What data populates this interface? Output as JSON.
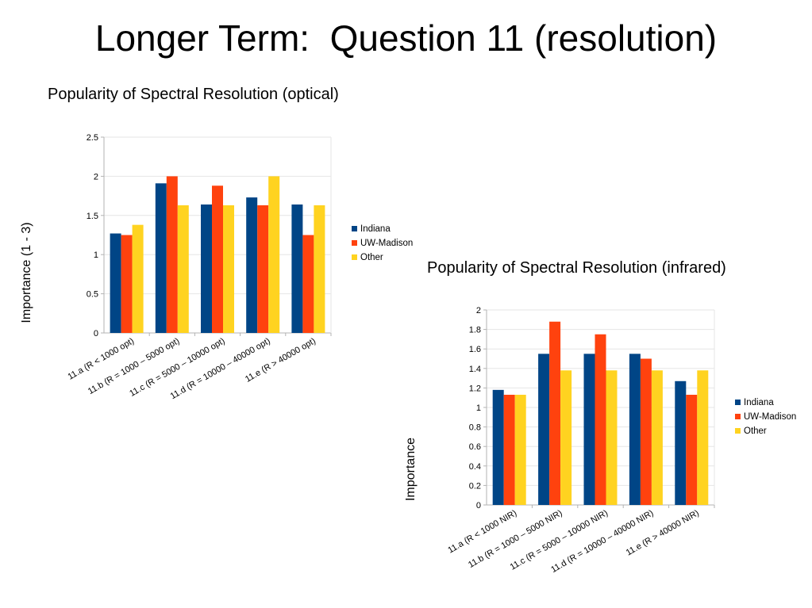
{
  "slide": {
    "title": "Longer Term:  Question 11 (resolution)"
  },
  "colors": {
    "Indiana": "#004586",
    "UW-Madison": "#ff420e",
    "Other": "#ffd320",
    "grid": "#e6e6e6",
    "axis": "#b3b3b3"
  },
  "chart_data": [
    {
      "type": "bar",
      "title": "Popularity of Spectral Resolution (optical)",
      "ylabel": "Importance (1 - 3)",
      "xlabel": "",
      "ylim": [
        0,
        2.5
      ],
      "yticks": [
        "0",
        "0.5",
        "1",
        "1.5",
        "2",
        "2.5"
      ],
      "yticks_values": [
        0,
        0.5,
        1,
        1.5,
        2,
        2.5
      ],
      "grid": true,
      "legend": "right",
      "categories": [
        "11.a (R < 1000 opt)",
        "11.b (R = 1000 – 5000 opt)",
        "11.c (R = 5000 – 10000 opt)",
        "11.d (R = 10000 – 40000 opt)",
        "11.e (R > 40000 opt)"
      ],
      "series": [
        {
          "name": "Indiana",
          "values": [
            1.27,
            1.91,
            1.64,
            1.73,
            1.64
          ]
        },
        {
          "name": "UW-Madison",
          "values": [
            1.25,
            2.0,
            1.88,
            1.63,
            1.25
          ]
        },
        {
          "name": "Other",
          "values": [
            1.38,
            1.63,
            1.63,
            2.0,
            1.63
          ]
        }
      ]
    },
    {
      "type": "bar",
      "title": "Popularity of Spectral Resolution (infrared)",
      "ylabel": "Importance",
      "xlabel": "",
      "ylim": [
        0,
        2
      ],
      "yticks": [
        "0",
        "0.2",
        "0.4",
        "0.6",
        "0.8",
        "1",
        "1.2",
        "1.4",
        "1.6",
        "1.8",
        "2"
      ],
      "yticks_values": [
        0,
        0.2,
        0.4,
        0.6,
        0.8,
        1,
        1.2,
        1.4,
        1.6,
        1.8,
        2
      ],
      "grid": true,
      "legend": "right",
      "categories": [
        "11.a (R < 1000 NIR)",
        "11.b (R = 1000 – 5000 NIR)",
        "11.c (R = 5000 – 10000 NIR)",
        "11.d (R = 10000 – 40000 NIR)",
        "11.e (R > 40000 NIR)"
      ],
      "series": [
        {
          "name": "Indiana",
          "values": [
            1.18,
            1.55,
            1.55,
            1.55,
            1.27
          ]
        },
        {
          "name": "UW-Madison",
          "values": [
            1.13,
            1.88,
            1.75,
            1.5,
            1.13
          ]
        },
        {
          "name": "Other",
          "values": [
            1.13,
            1.38,
            1.38,
            1.38,
            1.38
          ]
        }
      ]
    }
  ]
}
